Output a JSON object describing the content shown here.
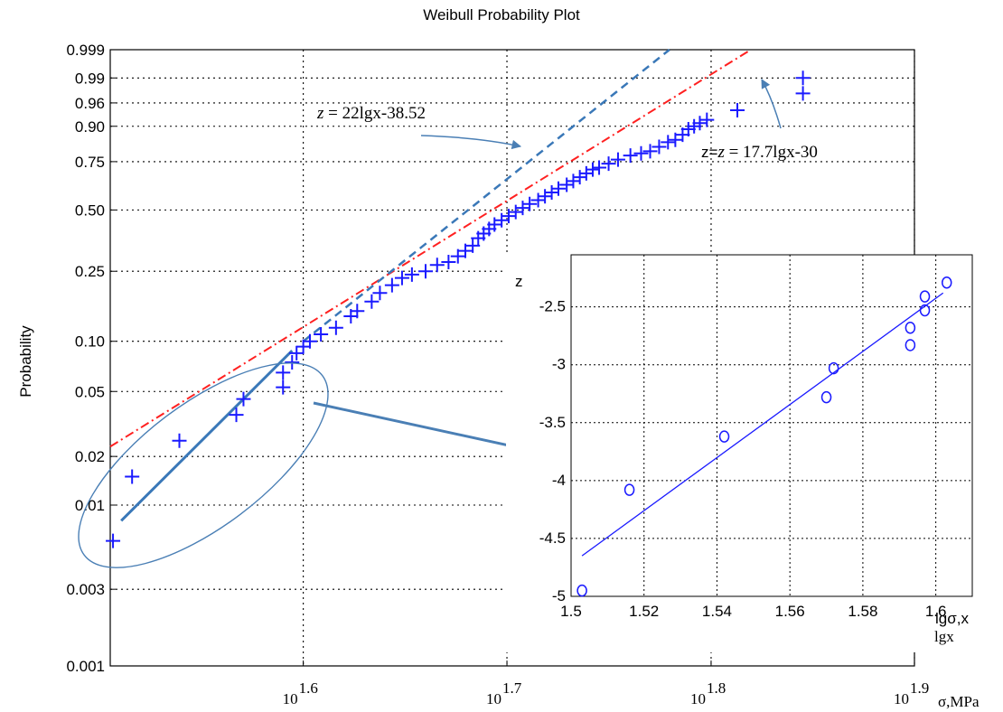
{
  "chart_data": [
    {
      "type": "scatter",
      "title": "Weibull Probability Plot",
      "xlabel": "σ,MPa",
      "ylabel": "Probability",
      "x_scale": "log10",
      "y_scale": "weibull",
      "xlim": [
        32,
        79.4
      ],
      "x_ticks": [
        {
          "value": 39.8,
          "base": "10",
          "exp": "1.6"
        },
        {
          "value": 50.1,
          "base": "10",
          "exp": "1.7"
        },
        {
          "value": 63.1,
          "base": "10",
          "exp": "1.8"
        },
        {
          "value": 79.4,
          "base": "10",
          "exp": "1.9"
        }
      ],
      "y_ticks": [
        {
          "value": 0.001,
          "label": "0.001"
        },
        {
          "value": 0.003,
          "label": "0.003"
        },
        {
          "value": 0.01,
          "label": "0.01"
        },
        {
          "value": 0.02,
          "label": "0.02"
        },
        {
          "value": 0.05,
          "label": "0.05"
        },
        {
          "value": 0.1,
          "label": "0.10"
        },
        {
          "value": 0.25,
          "label": "0.25"
        },
        {
          "value": 0.5,
          "label": "0.50"
        },
        {
          "value": 0.75,
          "label": "0.75"
        },
        {
          "value": 0.9,
          "label": "0.90"
        },
        {
          "value": 0.96,
          "label": "0.96"
        },
        {
          "value": 0.99,
          "label": "0.99"
        },
        {
          "value": 0.999,
          "label": "0.999"
        }
      ],
      "grid": true,
      "marker_color": "#1a1aff",
      "fit_line_color": "#ff2020",
      "dashed_line_color": "#3a78b8",
      "low_fit_color": "#3a78b8",
      "series": [
        {
          "marker": "+",
          "points": [
            [
              32.1,
              0.006
            ],
            [
              32.8,
              0.015
            ],
            [
              34.6,
              0.025
            ],
            [
              36.9,
              0.036
            ],
            [
              37.2,
              0.045
            ],
            [
              38.9,
              0.053
            ],
            [
              38.9,
              0.065
            ],
            [
              39.3,
              0.075
            ],
            [
              39.5,
              0.085
            ],
            [
              39.8,
              0.093
            ],
            [
              40.1,
              0.1
            ],
            [
              40.6,
              0.11
            ],
            [
              41.3,
              0.12
            ],
            [
              42.0,
              0.14
            ],
            [
              42.3,
              0.15
            ],
            [
              43.0,
              0.17
            ],
            [
              43.4,
              0.19
            ],
            [
              44.0,
              0.21
            ],
            [
              44.5,
              0.23
            ],
            [
              45.0,
              0.24
            ],
            [
              45.7,
              0.25
            ],
            [
              46.3,
              0.27
            ],
            [
              46.9,
              0.28
            ],
            [
              47.4,
              0.3
            ],
            [
              47.8,
              0.32
            ],
            [
              48.2,
              0.34
            ],
            [
              48.5,
              0.37
            ],
            [
              48.8,
              0.39
            ],
            [
              49.1,
              0.41
            ],
            [
              49.4,
              0.43
            ],
            [
              49.8,
              0.45
            ],
            [
              50.2,
              0.47
            ],
            [
              50.6,
              0.49
            ],
            [
              51.0,
              0.51
            ],
            [
              51.4,
              0.53
            ],
            [
              51.9,
              0.55
            ],
            [
              52.3,
              0.57
            ],
            [
              52.7,
              0.59
            ],
            [
              53.1,
              0.61
            ],
            [
              53.6,
              0.63
            ],
            [
              54.0,
              0.65
            ],
            [
              54.4,
              0.67
            ],
            [
              54.8,
              0.69
            ],
            [
              55.2,
              0.71
            ],
            [
              55.6,
              0.72
            ],
            [
              56.2,
              0.74
            ],
            [
              56.8,
              0.76
            ],
            [
              57.6,
              0.78
            ],
            [
              58.3,
              0.79
            ],
            [
              58.9,
              0.8
            ],
            [
              59.5,
              0.82
            ],
            [
              60.1,
              0.84
            ],
            [
              60.6,
              0.85
            ],
            [
              61.1,
              0.87
            ],
            [
              61.5,
              0.89
            ],
            [
              61.9,
              0.9
            ],
            [
              62.3,
              0.91
            ],
            [
              62.8,
              0.92
            ],
            [
              65.0,
              0.945
            ],
            [
              70.0,
              0.975
            ],
            [
              70.0,
              0.99
            ]
          ]
        }
      ],
      "fit_lines": [
        {
          "style": "dash-dot",
          "points": [
            [
              32.0,
              0.023
            ],
            [
              66.0,
              0.999
            ]
          ]
        },
        {
          "style": "dashed",
          "points": [
            [
              39.8,
              0.1
            ],
            [
              60.2,
              0.999
            ]
          ]
        },
        {
          "style": "solid",
          "points": [
            [
              32.4,
              0.008
            ],
            [
              39.3,
              0.088
            ]
          ]
        }
      ],
      "annotations": [
        {
          "var": "z",
          "text": " = 22lgx-38.52"
        },
        {
          "prefix": "z=",
          "var": "z",
          "text": " = 17.7lgx-30"
        }
      ]
    },
    {
      "type": "scatter",
      "xlabel_overlay": "lgσ,x",
      "xlabel": "lgx",
      "ylabel": "z",
      "xlim": [
        1.5,
        1.61
      ],
      "ylim": [
        -5,
        -2.05
      ],
      "x_ticks": [
        1.5,
        1.52,
        1.54,
        1.56,
        1.58,
        1.6
      ],
      "x_tick_labels": [
        "1.5",
        "1.52",
        "1.54",
        "1.56",
        "1.58",
        "1.6"
      ],
      "y_ticks": [
        -5,
        -4.5,
        -4,
        -3.5,
        -3,
        -2.5
      ],
      "y_tick_labels": [
        "-5",
        "-4.5",
        "-4",
        "-3.5",
        "-3",
        "-2.5"
      ],
      "grid": true,
      "marker": "o",
      "marker_color": "#1a1aff",
      "x": [
        1.503,
        1.516,
        1.542,
        1.57,
        1.572,
        1.593,
        1.593,
        1.597,
        1.597,
        1.603
      ],
      "y": [
        -4.95,
        -4.08,
        -3.62,
        -3.28,
        -3.03,
        -2.83,
        -2.68,
        -2.53,
        -2.41,
        -2.29
      ],
      "fit_line": [
        [
          1.503,
          -4.65
        ],
        [
          1.602,
          -2.38
        ]
      ]
    }
  ]
}
